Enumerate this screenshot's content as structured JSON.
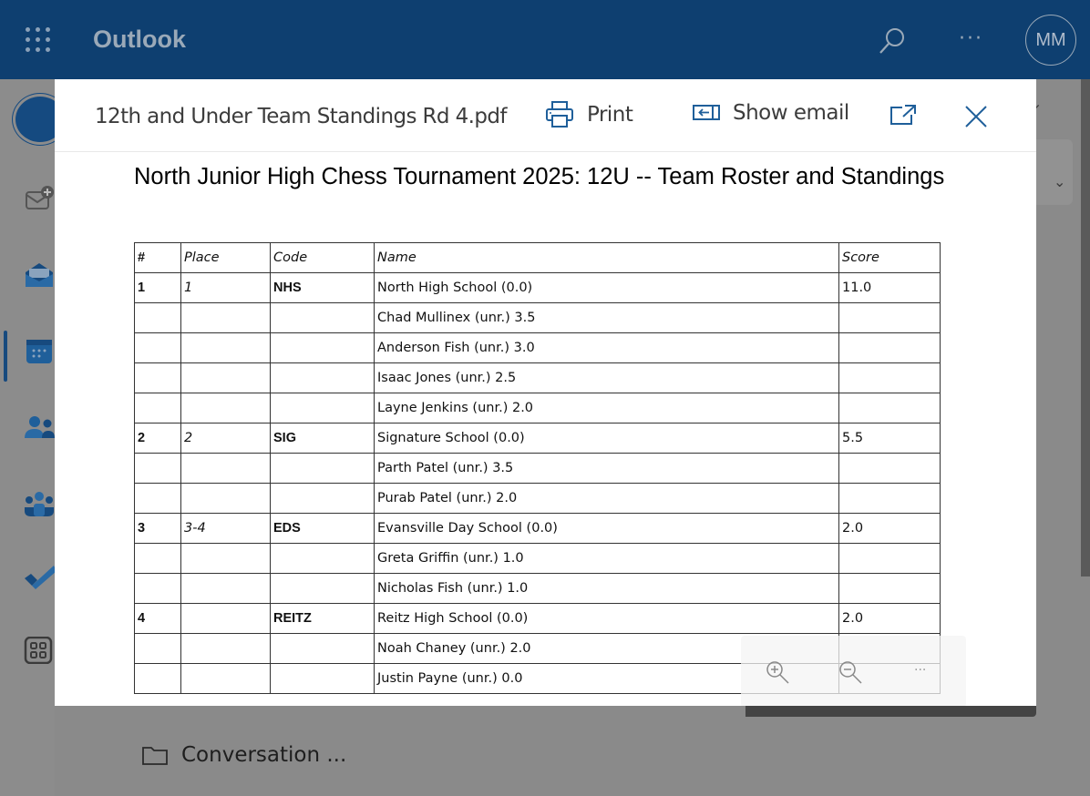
{
  "app": {
    "title": "Outlook",
    "avatar_initials": "MM",
    "search_icon": "search-icon",
    "more_icon": "more-icon"
  },
  "rail": {
    "items": [
      "new-mail",
      "mail",
      "calendar",
      "people",
      "groups",
      "to-do",
      "apps"
    ],
    "selected": "mail"
  },
  "viewer": {
    "file_name": "12th and Under Team Standings Rd 4.pdf",
    "print_label": "Print",
    "show_email_label": "Show email"
  },
  "document": {
    "title": "North Junior High Chess Tournament 2025: 12U -- Team Roster and Standings",
    "columns": [
      "#",
      "Place",
      "Code",
      "Name",
      "Score"
    ],
    "rows": [
      [
        "1",
        "1",
        "NHS",
        "North High School (0.0)",
        "11.0"
      ],
      [
        "",
        "",
        "",
        "Chad Mullinex (unr.) 3.5",
        ""
      ],
      [
        "",
        "",
        "",
        "Anderson Fish (unr.) 3.0",
        ""
      ],
      [
        "",
        "",
        "",
        "Isaac Jones (unr.) 2.5",
        ""
      ],
      [
        "",
        "",
        "",
        "Layne Jenkins (unr.) 2.0",
        ""
      ],
      [
        "2",
        "2",
        "SIG",
        "Signature School (0.0)",
        "5.5"
      ],
      [
        "",
        "",
        "",
        "Parth Patel (unr.) 3.5",
        ""
      ],
      [
        "",
        "",
        "",
        "Purab Patel (unr.) 2.0",
        ""
      ],
      [
        "3",
        "3-4",
        "EDS",
        "Evansville Day School (0.0)",
        "2.0"
      ],
      [
        "",
        "",
        "",
        "Greta Griffin (unr.) 1.0",
        ""
      ],
      [
        "",
        "",
        "",
        "Nicholas Fish (unr.) 1.0",
        ""
      ],
      [
        "4",
        "",
        "REITZ",
        "Reitz High School (0.0)",
        "2.0"
      ],
      [
        "",
        "",
        "",
        "Noah Chaney (unr.) 2.0",
        ""
      ],
      [
        "",
        "",
        "",
        "Justin Payne (unr.) 0.0",
        ""
      ]
    ]
  },
  "zoom_toolbar": {
    "more_label": "..."
  },
  "folder": {
    "label": "Conversation ..."
  }
}
